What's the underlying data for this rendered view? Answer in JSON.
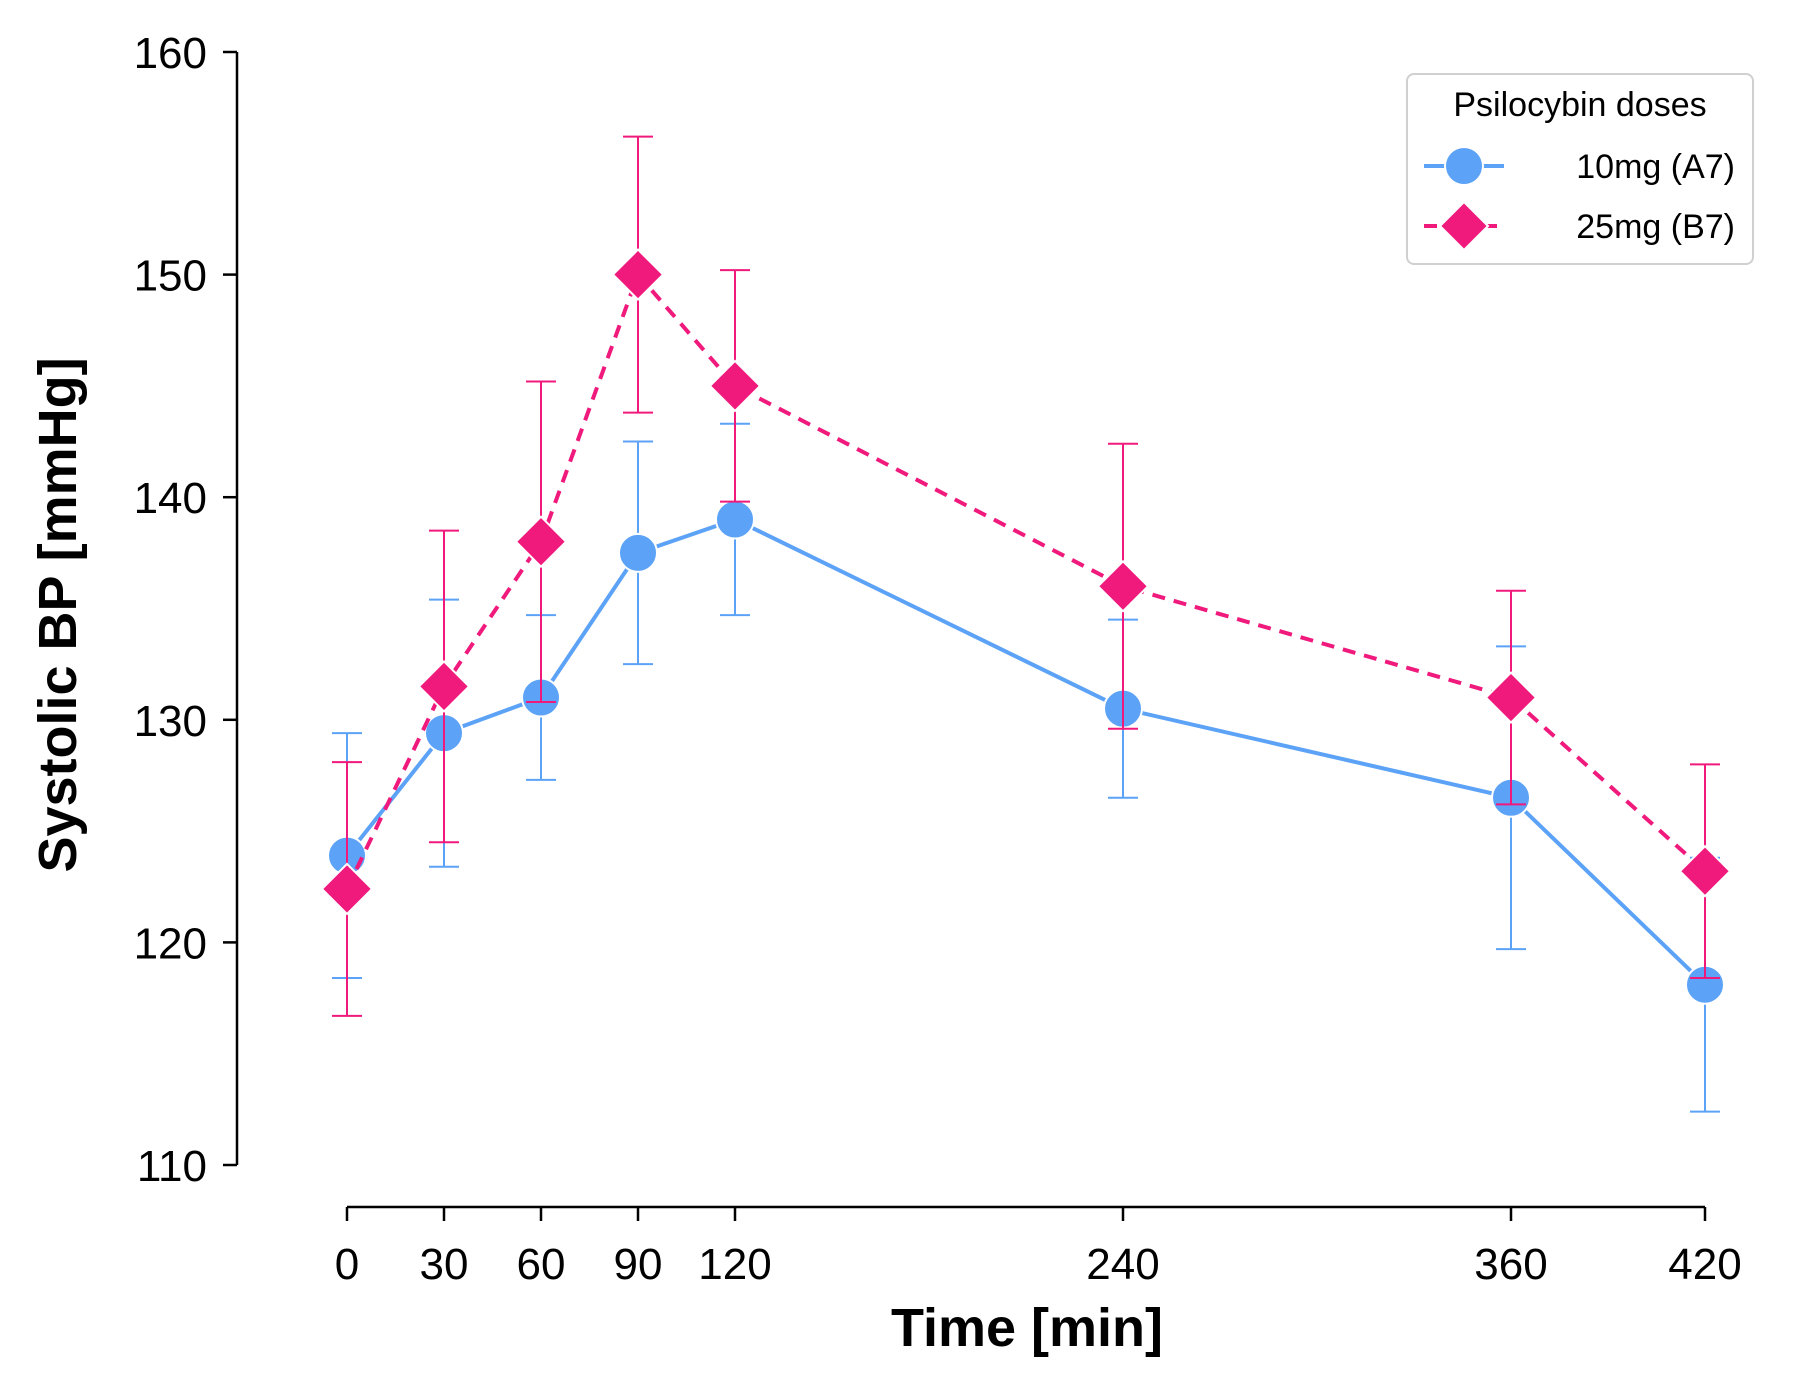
{
  "chart_data": {
    "type": "line",
    "xlabel": "Time [min]",
    "ylabel": "Systolic BP [mmHg]",
    "x": [
      0,
      30,
      60,
      90,
      120,
      240,
      360,
      420
    ],
    "xticks": [
      "0",
      "30",
      "60",
      "90",
      "120",
      "240",
      "360",
      "420"
    ],
    "yticks": [
      "110",
      "120",
      "130",
      "140",
      "150",
      "160"
    ],
    "xlim": [
      0,
      420
    ],
    "ylim": [
      110,
      160
    ],
    "grid": false,
    "legend": {
      "title": "Psilocybin doses",
      "position": "top-right"
    },
    "series": [
      {
        "name": "10mg (A7)",
        "color": "#5ca2f7",
        "marker": "circle",
        "line_style": "solid",
        "values": [
          123.9,
          129.4,
          131.0,
          137.5,
          139.0,
          130.5,
          126.5,
          118.1
        ],
        "error": [
          5.5,
          6.0,
          3.7,
          5.0,
          4.3,
          4.0,
          6.8,
          5.7
        ]
      },
      {
        "name": "25mg (B7)",
        "color": "#f01a7d",
        "marker": "diamond",
        "line_style": "dashed",
        "values": [
          122.4,
          131.5,
          138.0,
          150.0,
          145.0,
          136.0,
          131.0,
          123.2
        ],
        "error": [
          5.7,
          7.0,
          7.2,
          6.2,
          5.2,
          6.4,
          4.8,
          4.8
        ]
      }
    ]
  }
}
